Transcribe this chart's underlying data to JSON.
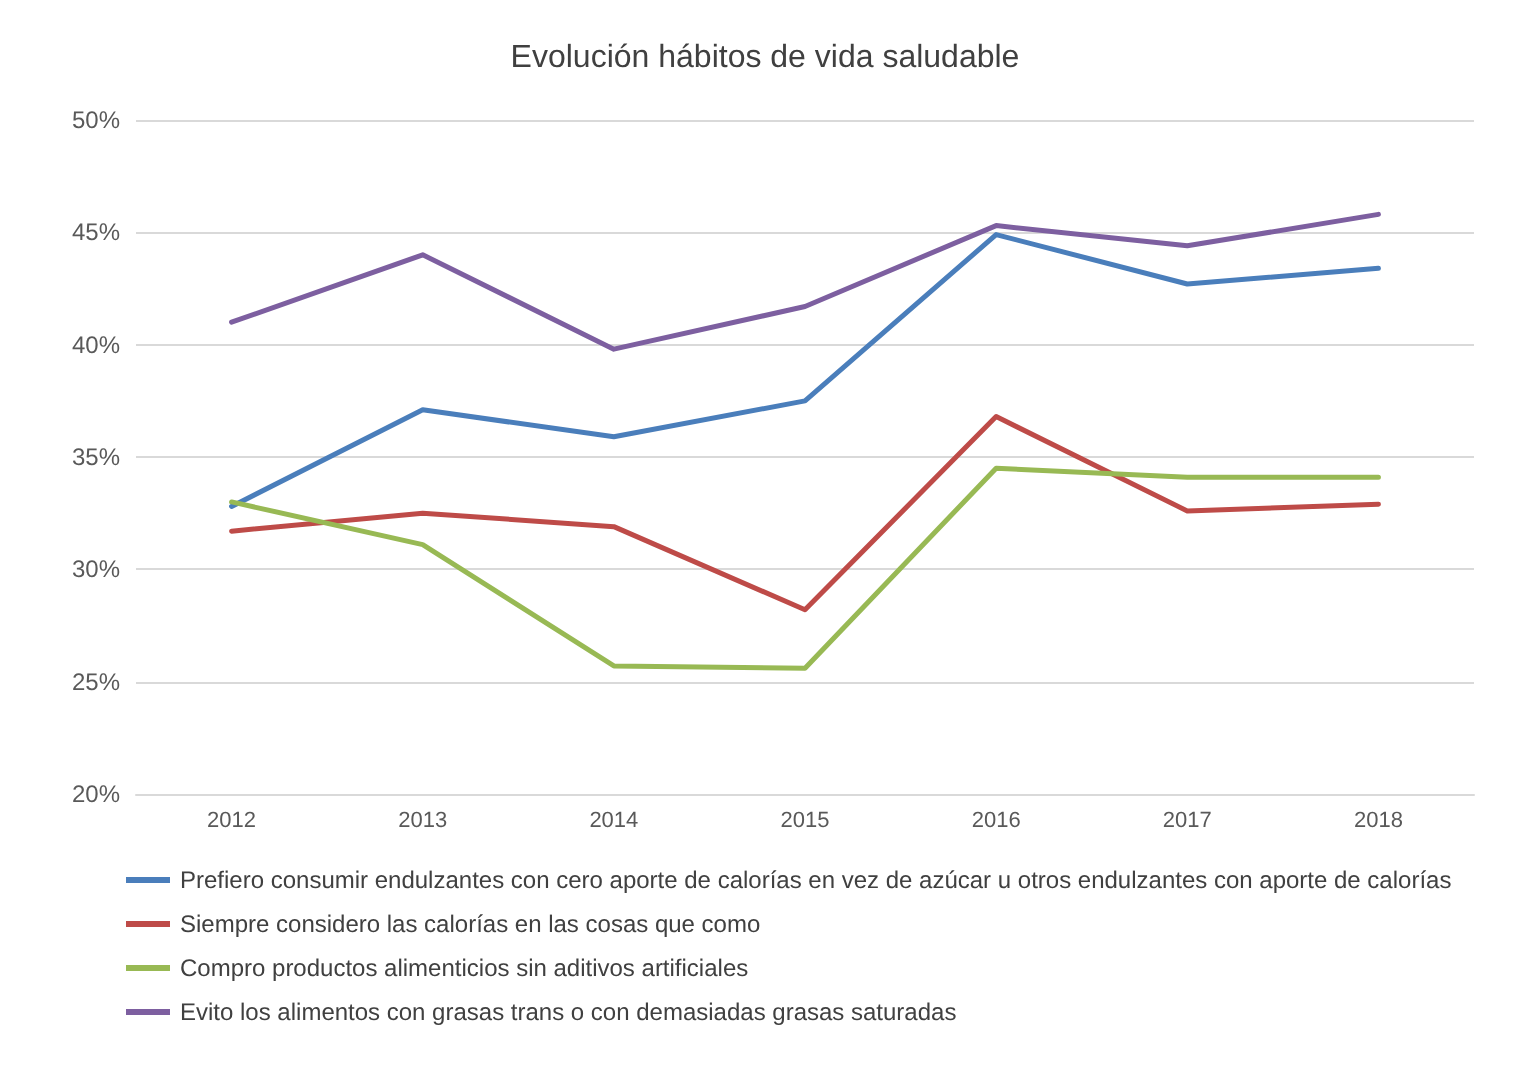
{
  "chart_data": {
    "type": "line",
    "title": "Evolución hábitos de vida saludable",
    "categories": [
      "2012",
      "2013",
      "2014",
      "2015",
      "2016",
      "2017",
      "2018"
    ],
    "series": [
      {
        "name": "Prefiero consumir endulzantes con cero aporte de calorías en vez de azúcar u otros endulzantes con aporte de calorías",
        "color": "#4a7ebb",
        "values": [
          32.8,
          37.1,
          35.9,
          37.5,
          44.9,
          42.7,
          43.4
        ]
      },
      {
        "name": "Siempre considero las calorías en las cosas que como",
        "color": "#be4b48",
        "values": [
          31.7,
          32.5,
          31.9,
          28.2,
          36.8,
          32.6,
          32.9
        ]
      },
      {
        "name": "Compro productos alimenticios sin aditivos artificiales",
        "color": "#98b954",
        "values": [
          33.0,
          31.1,
          25.7,
          25.6,
          34.5,
          34.1,
          34.1
        ]
      },
      {
        "name": "Evito los alimentos con grasas trans o con demasiadas grasas saturadas",
        "color": "#7d5fa0",
        "values": [
          41.0,
          44.0,
          39.8,
          41.7,
          45.3,
          44.4,
          45.8
        ]
      }
    ],
    "ylim": [
      20,
      50
    ],
    "yticks": [
      {
        "value": 20,
        "label": "20%"
      },
      {
        "value": 25,
        "label": "25%"
      },
      {
        "value": 30,
        "label": "30%"
      },
      {
        "value": 35,
        "label": "35%"
      },
      {
        "value": 40,
        "label": "40%"
      },
      {
        "value": 45,
        "label": "45%"
      },
      {
        "value": 50,
        "label": "50%"
      }
    ],
    "grid": "y",
    "legend": "bottom",
    "marker": "none",
    "line_style": "solid"
  }
}
